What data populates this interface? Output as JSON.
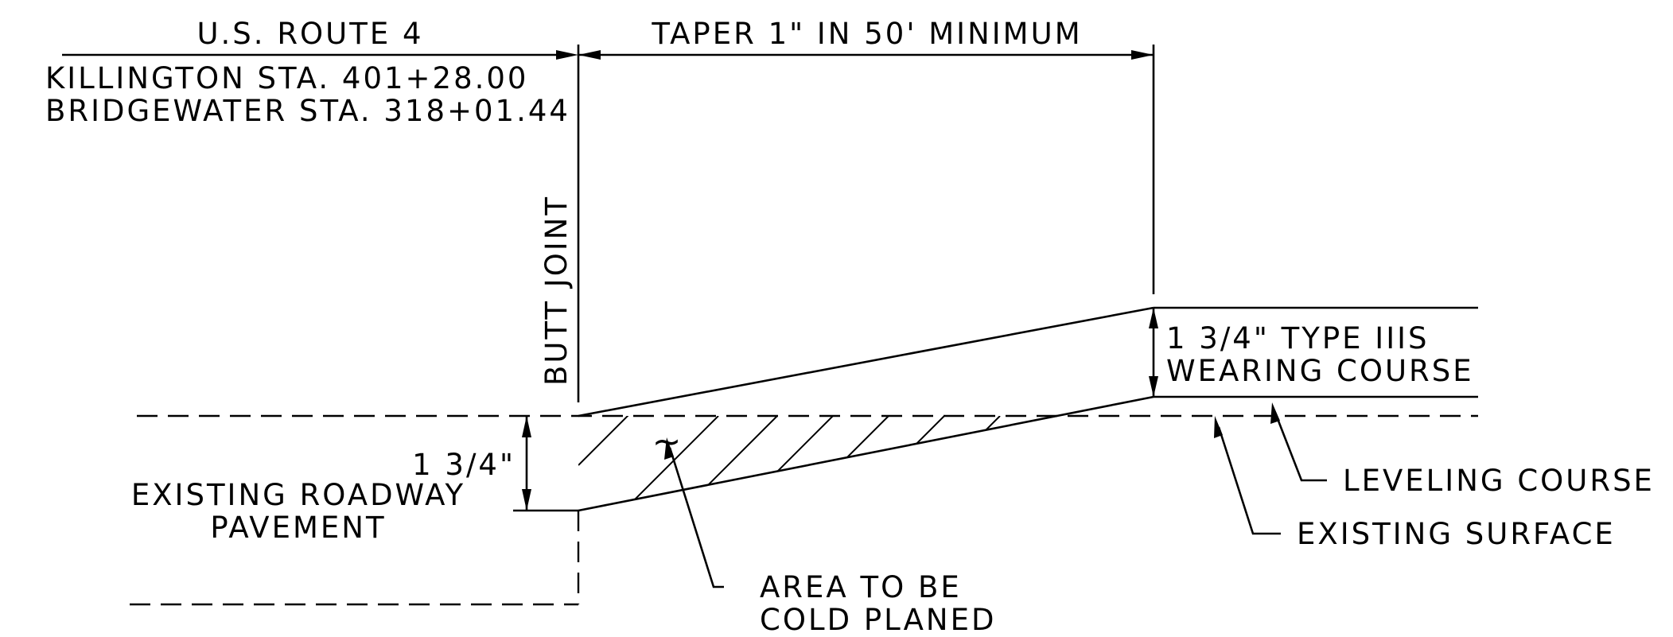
{
  "route": {
    "title": "U.S. ROUTE 4",
    "station_killington": "KILLINGTON STA. 401+28.00",
    "station_bridgewater": "BRIDGEWATER STA. 318+01.44"
  },
  "taper": "TAPER 1\" IN 50' MINIMUM",
  "butt_joint": "BUTT JOINT",
  "wearing_course": {
    "line1": "1 3/4\" TYPE IIIS",
    "line2": "WEARING COURSE"
  },
  "depth": "1 3/4\"",
  "existing_pavement": {
    "line1": "EXISTING ROADWAY",
    "line2": "PAVEMENT"
  },
  "leveling_course": "LEVELING COURSE",
  "existing_surface": "EXISTING SURFACE",
  "cold_planed": {
    "line1": "AREA TO BE",
    "line2": "COLD PLANED"
  },
  "tilde": "~"
}
